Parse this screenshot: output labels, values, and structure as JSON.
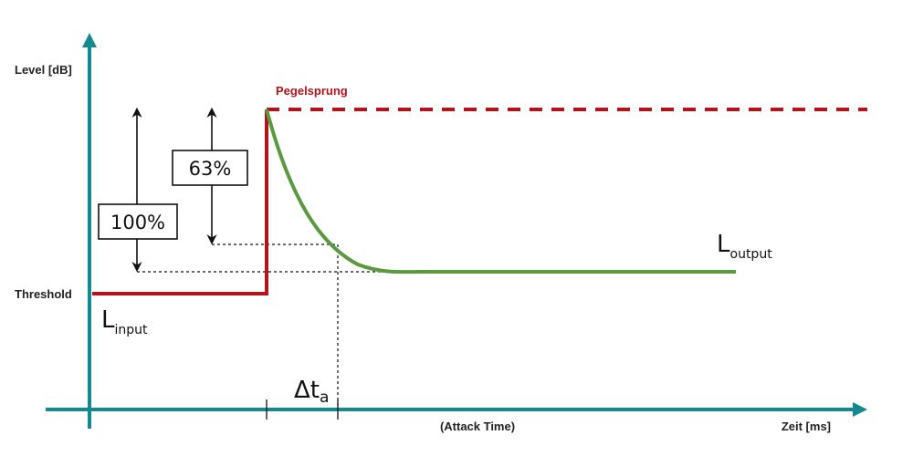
{
  "labels": {
    "y_axis": "Level [dB]",
    "x_axis": "Zeit [ms]",
    "attack_time": "(Attack Time)",
    "threshold": "Threshold",
    "step": "Pegelsprung",
    "pct_full": "100%",
    "pct_partial": "63%",
    "input_main": "L",
    "input_sub": "input",
    "output_main": "L",
    "output_sub": "output",
    "delta_main": "Δt",
    "delta_sub": "a"
  },
  "colors": {
    "axis": "#138a92",
    "input": "#b5121b",
    "output": "#5a9940",
    "annotation": "#111111"
  },
  "icons": [
    "up-arrow-icon",
    "right-arrow-icon",
    "double-arrow-icon"
  ]
}
